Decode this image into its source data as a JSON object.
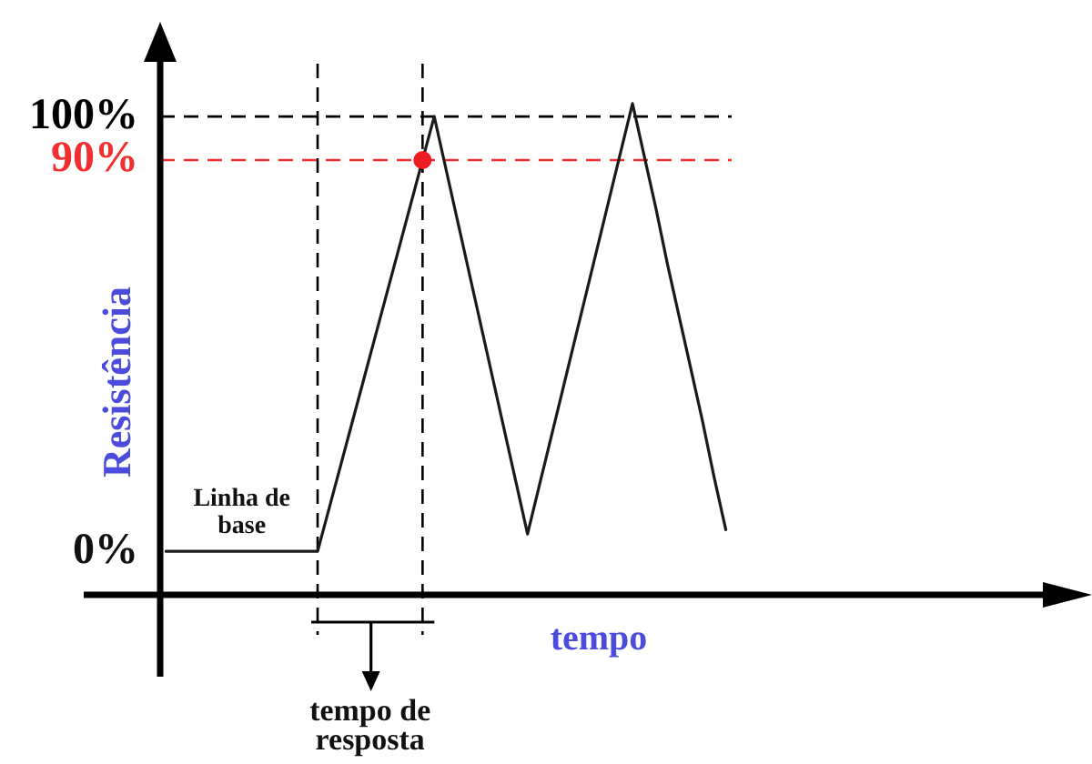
{
  "chart_data": {
    "type": "line",
    "ylabel": "Resistência",
    "xlabel": "tempo",
    "categories": [
      null,
      null,
      null,
      null,
      null,
      null,
      null,
      null,
      null,
      null,
      null,
      null,
      null,
      null,
      null,
      null,
      null,
      null,
      null,
      null,
      null,
      null,
      null,
      null,
      null,
      null,
      null,
      null,
      null,
      null,
      null,
      null,
      null,
      null,
      null,
      null,
      null,
      null,
      null,
      null,
      null,
      null,
      null,
      null,
      null,
      null,
      null,
      null,
      null
    ],
    "series": [
      {
        "color": "#1a1a1a",
        "values": [
          0,
          0,
          0,
          0,
          0,
          0,
          0,
          0,
          0,
          0,
          0,
          0,
          0,
          0,
          10,
          20,
          30,
          40,
          50,
          60,
          70,
          80,
          90,
          100,
          88,
          76,
          64,
          52,
          40,
          28,
          16,
          4,
          15,
          26,
          37,
          48,
          59,
          70,
          81,
          92,
          103,
          91,
          79,
          66,
          54,
          42,
          30,
          17,
          5
        ]
      },
      {
        "type": "scatter",
        "color": "#ee1c24",
        "marker": "circle",
        "values": [
          null,
          null,
          null,
          null,
          null,
          null,
          null,
          null,
          null,
          null,
          null,
          null,
          null,
          null,
          null,
          null,
          null,
          null,
          null,
          null,
          null,
          null,
          90,
          null,
          null,
          null,
          null,
          null,
          null,
          null,
          null,
          null,
          null,
          null,
          null,
          null,
          null,
          null,
          null,
          null,
          null,
          null,
          null,
          null,
          null,
          null,
          null,
          null,
          null
        ]
      }
    ],
    "marker": "none",
    "ylim": [
      -10,
      113
    ],
    "yticks": [
      {
        "value": 0,
        "label": "0%"
      },
      {
        "value": 90,
        "label": "90%"
      },
      {
        "value": 100,
        "label": "100%"
      }
    ],
    "tick_labels": "y",
    "ref_lines": [
      {
        "axis": "y",
        "value": 100,
        "color": "#000000",
        "line_style": "dashed"
      },
      {
        "axis": "y",
        "value": 90,
        "color": "#f03030",
        "line_style": "dashed"
      }
    ],
    "annotations": [
      {
        "text": "Linha de base",
        "y": 0
      },
      "tempo de resposta"
    ]
  }
}
